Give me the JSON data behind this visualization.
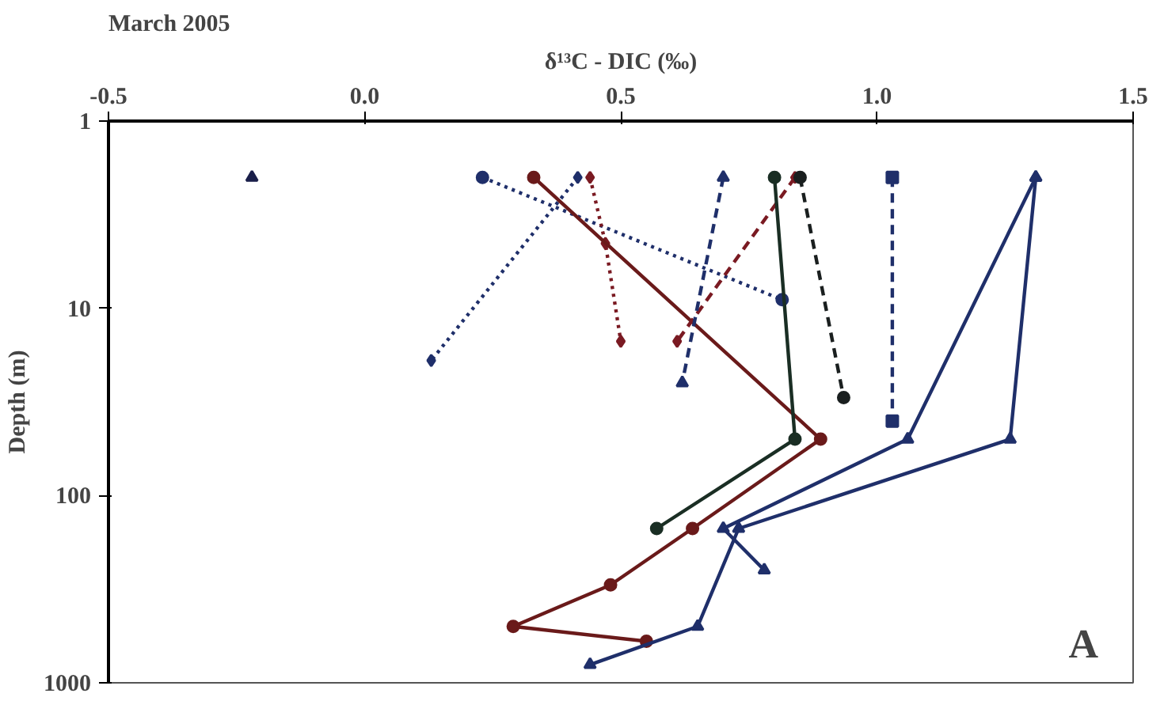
{
  "chart_data": {
    "type": "line",
    "title": "March 2005",
    "xlabel": "δ¹³C - DIC (‰)",
    "ylabel": "Depth (m)",
    "xlim": [
      -0.5,
      1.5
    ],
    "xticks": [
      {
        "value": -0.5,
        "label": "-0.5"
      },
      {
        "value": 0,
        "label": "0.0"
      },
      {
        "value": 0.5,
        "label": "0.5"
      },
      {
        "value": 1,
        "label": "1.0"
      },
      {
        "value": 1.5,
        "label": "1.5"
      }
    ],
    "ylim": [
      1000,
      1
    ],
    "yticks": [
      1,
      10,
      100,
      1000
    ],
    "log": "y",
    "grid": false,
    "annotations": [
      "A"
    ],
    "series": [
      {
        "type": "scatter",
        "color": "#1a1f4a",
        "marker": "triangle",
        "x": [
          -0.22
        ],
        "values": [
          2
        ]
      },
      {
        "color": "#1f2f6a",
        "marker": "circle",
        "line_style": "dotted",
        "x": [
          0.23,
          0.815
        ],
        "values": [
          2,
          9
        ]
      },
      {
        "color": "#1f2f6a",
        "marker": "diamond",
        "line_style": "dotted",
        "x": [
          0.416,
          0.13
        ],
        "values": [
          2,
          19
        ]
      },
      {
        "color": "#7a1a22",
        "marker": "diamond",
        "line_style": "dotted",
        "x": [
          0.44,
          0.47,
          0.5
        ],
        "values": [
          2,
          4.5,
          15
        ]
      },
      {
        "color": "#6a1a1a",
        "marker": "circle",
        "line_style": "solid",
        "x": [
          0.33,
          0.89,
          0.64,
          0.48,
          0.29,
          0.55
        ],
        "values": [
          2,
          50,
          150,
          300,
          500,
          600
        ]
      },
      {
        "color": "#7a1a22",
        "marker": "diamond",
        "line_style": "dashed",
        "x": [
          0.84,
          0.61
        ],
        "values": [
          2,
          15
        ]
      },
      {
        "color": "#1f2f6a",
        "marker": "triangle",
        "line_style": "dashed",
        "x": [
          0.7,
          0.62
        ],
        "values": [
          2,
          25
        ]
      },
      {
        "color": "#1a1f1f",
        "marker": "circle",
        "line_style": "dashed",
        "x": [
          0.85,
          0.935
        ],
        "values": [
          2,
          30
        ]
      },
      {
        "color": "#1a2e24",
        "marker": "circle",
        "line_style": "solid",
        "x": [
          0.8,
          0.84,
          0.57
        ],
        "values": [
          2,
          50,
          150
        ]
      },
      {
        "color": "#1f2f6a",
        "marker": "square",
        "line_style": "dashed",
        "x": [
          1.03,
          1.03
        ],
        "values": [
          2,
          40
        ]
      },
      {
        "color": "#1f2f6a",
        "marker": "triangle",
        "line_style": "solid",
        "x": [
          1.31,
          1.06,
          0.7,
          0.78
        ],
        "values": [
          2,
          50,
          150,
          250
        ]
      },
      {
        "color": "#1f2f6a",
        "marker": "triangle",
        "line_style": "solid",
        "x": [
          1.31,
          1.26,
          0.73,
          0.65,
          0.44
        ],
        "values": [
          2,
          50,
          150,
          500,
          800
        ]
      }
    ]
  }
}
